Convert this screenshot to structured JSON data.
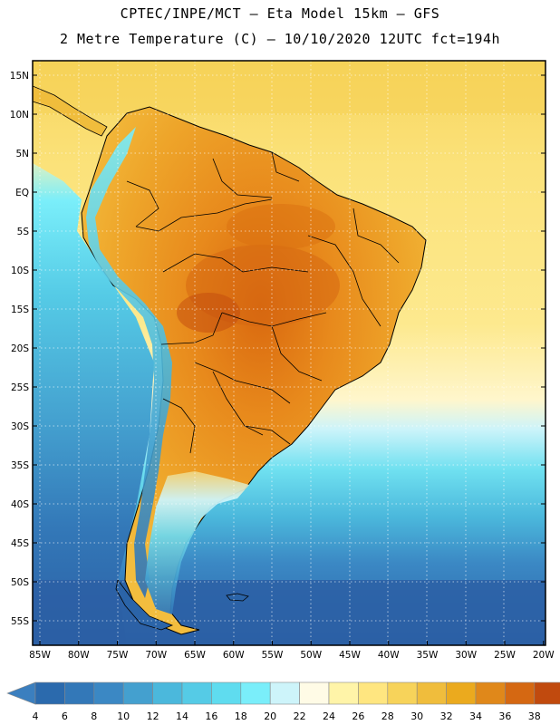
{
  "header": {
    "line1": "CPTEC/INPE/MCT –  Eta Model 15km – GFS",
    "line2": "2 Metre Temperature (C) – 10/10/2020 12UTC fct=194h"
  },
  "map": {
    "lat_ticks": [
      "15N",
      "10N",
      "5N",
      "EQ",
      "5S",
      "10S",
      "15S",
      "20S",
      "25S",
      "30S",
      "35S",
      "40S",
      "45S",
      "50S",
      "55S"
    ],
    "lon_ticks": [
      "85W",
      "80W",
      "75W",
      "70W",
      "65W",
      "60W",
      "55W",
      "50W",
      "45W",
      "40W",
      "35W",
      "30W",
      "25W",
      "20W"
    ],
    "lon_range": [
      -85,
      -20
    ],
    "lat_range": [
      -58,
      17
    ]
  },
  "colorbar": {
    "labels": [
      "4",
      "6",
      "8",
      "10",
      "12",
      "14",
      "16",
      "18",
      "20",
      "22",
      "24",
      "26",
      "28",
      "30",
      "32",
      "34",
      "36",
      "38"
    ],
    "low_color": "#3b7fbf",
    "high_color": "#c14a0e",
    "colors": [
      "#2b6aad",
      "#3378b8",
      "#3b88c4",
      "#44a0cf",
      "#4bb8dc",
      "#55cbe6",
      "#5fdcef",
      "#7aeefa",
      "#cdf4fa",
      "#fffbe6",
      "#fff4a8",
      "#ffe680",
      "#f7d35a",
      "#f0bd3c",
      "#ebaa1e",
      "#e0881a",
      "#d56812",
      "#c14a0e"
    ]
  }
}
